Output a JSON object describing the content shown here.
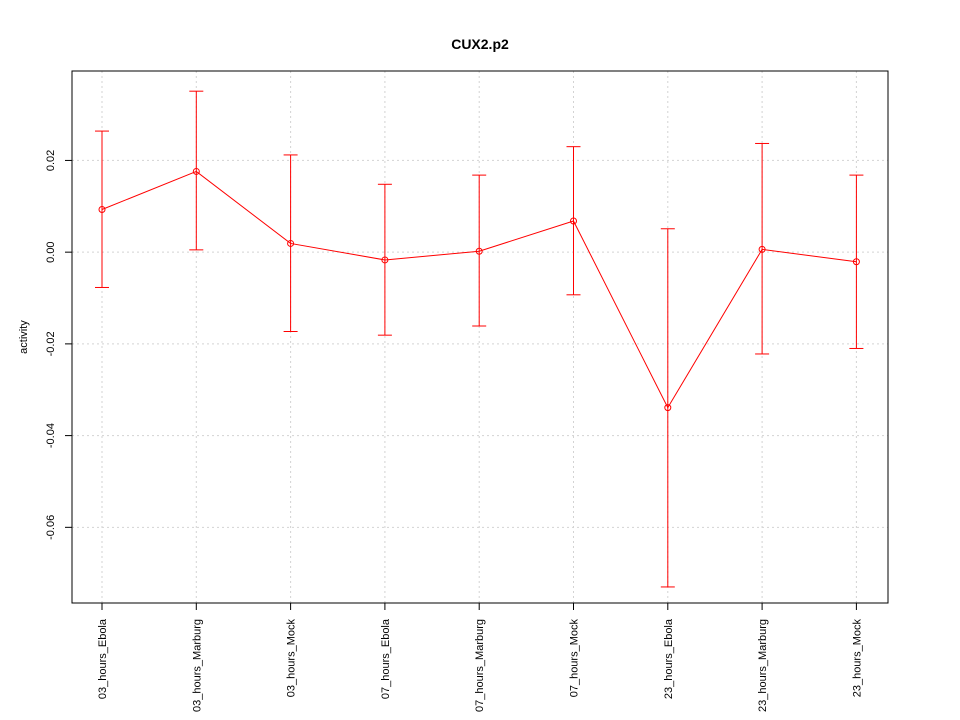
{
  "chart_data": {
    "type": "line",
    "title": "CUX2.p2",
    "xlabel": "",
    "ylabel": "activity",
    "categories": [
      "03_hours_Ebola",
      "03_hours_Marburg",
      "03_hours_Mock",
      "07_hours_Ebola",
      "07_hours_Marburg",
      "07_hours_Mock",
      "23_hours_Ebola",
      "23_hours_Marburg",
      "23_hours_Mock"
    ],
    "series": [
      {
        "values": [
          0.0093,
          0.0176,
          0.0019,
          -0.0017,
          0.0002,
          0.0068,
          -0.0339,
          0.0006,
          -0.0021
        ],
        "upper": [
          0.0264,
          0.0351,
          0.0212,
          0.0148,
          0.0168,
          0.023,
          0.0051,
          0.0237,
          0.0168
        ],
        "lower": [
          -0.0077,
          0.0005,
          -0.0173,
          -0.0181,
          -0.0161,
          -0.0093,
          -0.073,
          -0.0222,
          -0.021
        ],
        "color": "#ff0000"
      }
    ],
    "yticks": [
      0.02,
      0.0,
      -0.02,
      -0.04,
      -0.06
    ],
    "ytick_labels": [
      "0.02",
      "0.00",
      "-0.02",
      "-0.04",
      "-0.06"
    ],
    "ylim": [
      -0.0765,
      0.0395
    ],
    "grid": true,
    "zero_line": true
  }
}
